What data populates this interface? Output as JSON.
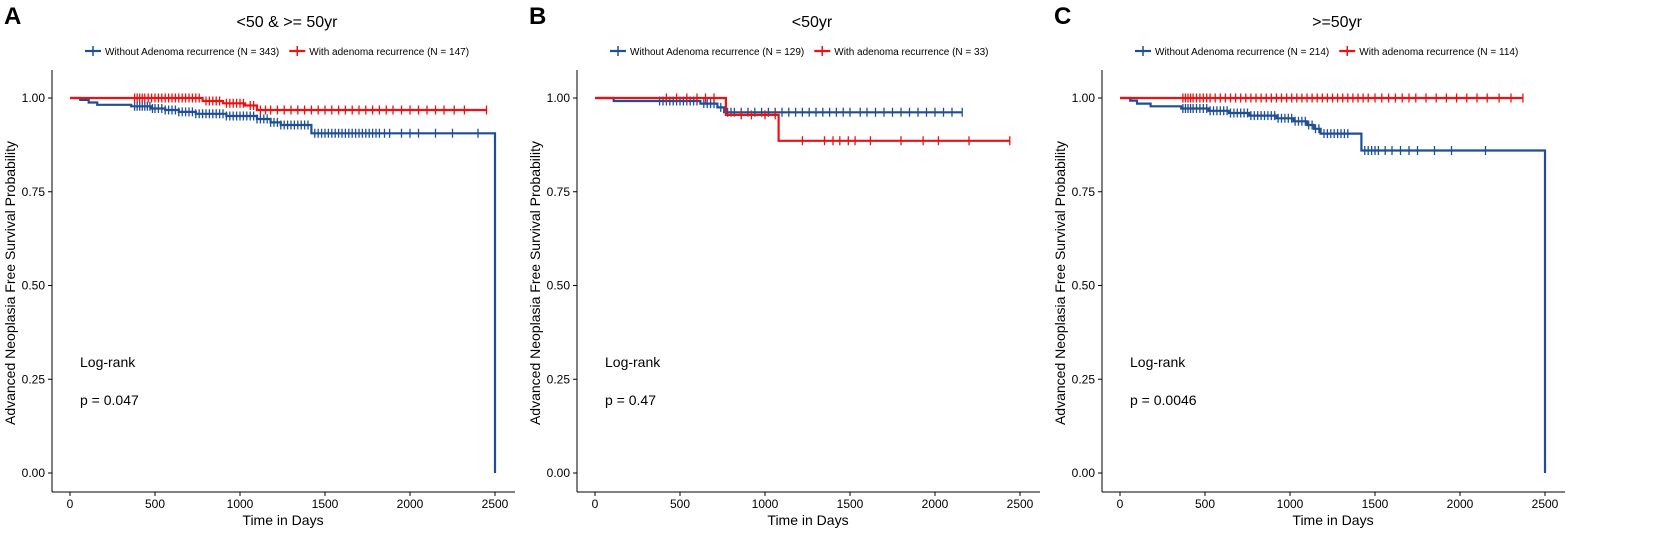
{
  "colors": {
    "blue": "#1f4e96",
    "red": "#ee1111",
    "axis": "#000000"
  },
  "chart_data": [
    {
      "panel_label": "A",
      "type": "line",
      "title": "<50 & >= 50yr",
      "xlabel": "Time in Days",
      "ylabel": "Advanced Neoplasia Free Survival Probability",
      "xlim": [
        0,
        2550
      ],
      "ylim": [
        0,
        1.0
      ],
      "xticks": [
        0,
        500,
        1000,
        1500,
        2000,
        2500
      ],
      "xtick_labels": [
        "0",
        "500",
        "1000",
        "1500",
        "2000",
        "2500"
      ],
      "yticks": [
        0,
        0.25,
        0.5,
        0.75,
        1.0
      ],
      "ytick_labels": [
        "0.00",
        "0.25",
        "0.50",
        "0.75",
        "1.00"
      ],
      "annotation": {
        "line1": "Log-rank",
        "line2": "p = 0.047"
      },
      "legend_position": "top",
      "series": [
        {
          "name": "Without Adenoma recurrence (N = 343)",
          "color": "blue",
          "steps": [
            [
              0,
              1.0
            ],
            [
              60,
              0.995
            ],
            [
              110,
              0.988
            ],
            [
              160,
              0.982
            ],
            [
              360,
              0.978
            ],
            [
              480,
              0.972
            ],
            [
              560,
              0.968
            ],
            [
              640,
              0.963
            ],
            [
              740,
              0.958
            ],
            [
              920,
              0.952
            ],
            [
              1100,
              0.944
            ],
            [
              1180,
              0.935
            ],
            [
              1240,
              0.928
            ],
            [
              1420,
              0.906
            ],
            [
              2500,
              0.906
            ],
            [
              2500,
              0.0
            ]
          ],
          "censor": [
            380,
            395,
            410,
            425,
            440,
            455,
            470,
            485,
            500,
            520,
            540,
            560,
            580,
            600,
            620,
            640,
            660,
            680,
            700,
            720,
            740,
            760,
            780,
            800,
            820,
            840,
            860,
            880,
            900,
            920,
            940,
            960,
            980,
            1000,
            1020,
            1040,
            1060,
            1080,
            1100,
            1120,
            1140,
            1160,
            1180,
            1200,
            1220,
            1240,
            1260,
            1280,
            1300,
            1320,
            1340,
            1360,
            1380,
            1400,
            1440,
            1460,
            1480,
            1500,
            1520,
            1540,
            1560,
            1580,
            1600,
            1620,
            1640,
            1660,
            1680,
            1700,
            1720,
            1740,
            1760,
            1780,
            1800,
            1820,
            1850,
            1880,
            1950,
            2000,
            2050,
            2150,
            2250,
            2400
          ]
        },
        {
          "name": "With adenoma recurrence (N = 147)",
          "color": "red",
          "steps": [
            [
              0,
              1.0
            ],
            [
              780,
              0.992
            ],
            [
              900,
              0.986
            ],
            [
              1030,
              0.98
            ],
            [
              1100,
              0.968
            ],
            [
              2450,
              0.968
            ]
          ],
          "censor": [
            380,
            395,
            410,
            425,
            440,
            460,
            480,
            500,
            520,
            540,
            560,
            580,
            600,
            620,
            640,
            660,
            680,
            700,
            720,
            740,
            760,
            800,
            820,
            840,
            860,
            880,
            920,
            940,
            960,
            980,
            1000,
            1020,
            1060,
            1080,
            1120,
            1150,
            1180,
            1220,
            1260,
            1300,
            1340,
            1380,
            1420,
            1460,
            1500,
            1540,
            1580,
            1620,
            1660,
            1700,
            1740,
            1780,
            1820,
            1860,
            1900,
            1950,
            2000,
            2050,
            2100,
            2150,
            2200,
            2260,
            2320,
            2450
          ]
        }
      ]
    },
    {
      "panel_label": "B",
      "type": "line",
      "title": "<50yr",
      "xlabel": "Time in Days",
      "ylabel": "Advanced Neoplasia Free Survival Probability",
      "xlim": [
        0,
        2550
      ],
      "ylim": [
        0,
        1.0
      ],
      "xticks": [
        0,
        500,
        1000,
        1500,
        2000,
        2500
      ],
      "xtick_labels": [
        "0",
        "500",
        "1000",
        "1500",
        "2000",
        "2500"
      ],
      "yticks": [
        0,
        0.25,
        0.5,
        0.75,
        1.0
      ],
      "ytick_labels": [
        "0.00",
        "0.25",
        "0.50",
        "0.75",
        "1.00"
      ],
      "annotation": {
        "line1": "Log-rank",
        "line2": "p = 0.47"
      },
      "legend_position": "top",
      "series": [
        {
          "name": "Without Adenoma recurrence (N = 129)",
          "color": "blue",
          "steps": [
            [
              0,
              1.0
            ],
            [
              110,
              0.992
            ],
            [
              620,
              0.985
            ],
            [
              720,
              0.975
            ],
            [
              760,
              0.962
            ],
            [
              2160,
              0.962
            ]
          ],
          "censor": [
            380,
            400,
            420,
            440,
            460,
            480,
            500,
            520,
            540,
            560,
            580,
            600,
            640,
            660,
            680,
            700,
            740,
            780,
            800,
            820,
            860,
            900,
            940,
            980,
            1020,
            1060,
            1100,
            1140,
            1180,
            1220,
            1260,
            1300,
            1340,
            1380,
            1420,
            1460,
            1500,
            1560,
            1600,
            1650,
            1700,
            1750,
            1800,
            1850,
            1900,
            1950,
            2000,
            2050,
            2100,
            2160
          ]
        },
        {
          "name": "With adenoma recurrence (N = 33)",
          "color": "red",
          "steps": [
            [
              0,
              1.0
            ],
            [
              770,
              0.955
            ],
            [
              1080,
              0.886
            ],
            [
              2440,
              0.886
            ]
          ],
          "censor": [
            420,
            480,
            540,
            600,
            650,
            700,
            860,
            920,
            1000,
            1060,
            1220,
            1350,
            1400,
            1440,
            1490,
            1530,
            1620,
            1800,
            1930,
            2020,
            2200,
            2440
          ]
        }
      ]
    },
    {
      "panel_label": "C",
      "type": "line",
      "title": ">=50yr",
      "xlabel": "Time in Days",
      "ylabel": "Advanced Neoplasia Free Survival Probability",
      "xlim": [
        0,
        2550
      ],
      "ylim": [
        0,
        1.0
      ],
      "xticks": [
        0,
        500,
        1000,
        1500,
        2000,
        2500
      ],
      "xtick_labels": [
        "0",
        "500",
        "1000",
        "1500",
        "2000",
        "2500"
      ],
      "yticks": [
        0,
        0.25,
        0.5,
        0.75,
        1.0
      ],
      "ytick_labels": [
        "0.00",
        "0.25",
        "0.50",
        "0.75",
        "1.00"
      ],
      "annotation": {
        "line1": "Log-rank",
        "line2": "p = 0.0046"
      },
      "legend_position": "top",
      "series": [
        {
          "name": "Without Adenoma recurrence (N = 214)",
          "color": "blue",
          "steps": [
            [
              0,
              1.0
            ],
            [
              60,
              0.993
            ],
            [
              100,
              0.985
            ],
            [
              180,
              0.978
            ],
            [
              360,
              0.972
            ],
            [
              520,
              0.966
            ],
            [
              640,
              0.96
            ],
            [
              760,
              0.953
            ],
            [
              920,
              0.946
            ],
            [
              1020,
              0.938
            ],
            [
              1100,
              0.928
            ],
            [
              1140,
              0.918
            ],
            [
              1180,
              0.905
            ],
            [
              1420,
              0.86
            ],
            [
              2500,
              0.86
            ],
            [
              2500,
              0.0
            ]
          ],
          "censor": [
            370,
            385,
            400,
            415,
            430,
            450,
            470,
            490,
            510,
            530,
            550,
            570,
            590,
            610,
            630,
            650,
            670,
            690,
            710,
            730,
            750,
            770,
            790,
            810,
            830,
            850,
            870,
            890,
            910,
            930,
            950,
            970,
            990,
            1010,
            1030,
            1050,
            1070,
            1090,
            1110,
            1130,
            1150,
            1170,
            1200,
            1220,
            1240,
            1260,
            1280,
            1300,
            1320,
            1340,
            1440,
            1460,
            1480,
            1500,
            1520,
            1560,
            1600,
            1650,
            1700,
            1750,
            1850,
            1950,
            2150
          ]
        },
        {
          "name": "With adenoma recurrence (N = 114)",
          "color": "red",
          "steps": [
            [
              0,
              1.0
            ],
            [
              2370,
              1.0
            ]
          ],
          "censor": [
            370,
            385,
            400,
            415,
            430,
            450,
            470,
            490,
            510,
            530,
            560,
            590,
            620,
            650,
            680,
            710,
            740,
            770,
            800,
            830,
            860,
            890,
            920,
            950,
            980,
            1010,
            1040,
            1070,
            1100,
            1130,
            1160,
            1190,
            1220,
            1250,
            1280,
            1310,
            1340,
            1370,
            1400,
            1430,
            1460,
            1500,
            1540,
            1580,
            1620,
            1660,
            1700,
            1740,
            1800,
            1860,
            1920,
            1980,
            2040,
            2100,
            2160,
            2230,
            2300,
            2370
          ]
        }
      ]
    }
  ]
}
